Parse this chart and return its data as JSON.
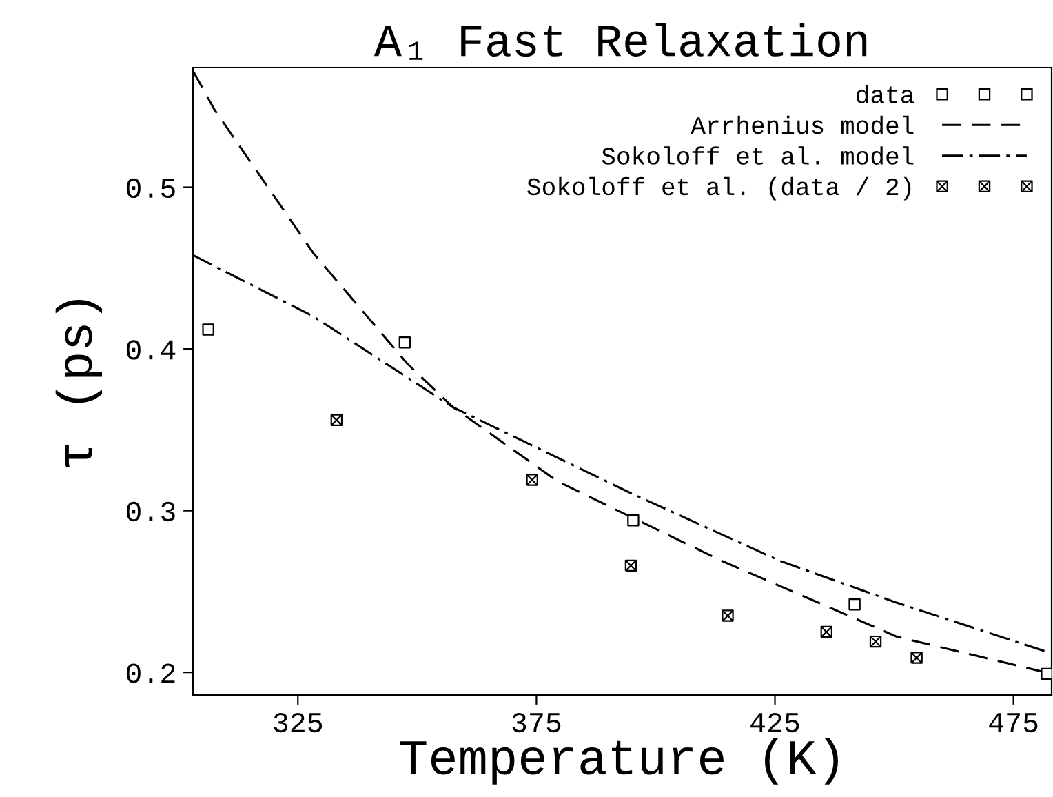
{
  "chart_data": {
    "type": "scatter",
    "title": "A₁ Fast Relaxation",
    "xlabel": "Temperature (K)",
    "ylabel": "τ (ps)",
    "xlim": [
      303,
      483
    ],
    "ylim": [
      0.186,
      0.574
    ],
    "xticks": [
      325,
      375,
      425,
      475
    ],
    "yticks": [
      0.2,
      0.3,
      0.4,
      0.5
    ],
    "grid": false,
    "legend": "top right",
    "series": [
      {
        "name": "data",
        "marker": "square",
        "color": "#000000",
        "x": [
          306.2,
          347.4,
          395.3,
          441.7,
          482
        ],
        "values": [
          0.412,
          0.404,
          0.294,
          0.242,
          0.199
        ]
      },
      {
        "name": "Arrhenius model",
        "type": "line",
        "line_style": "dashed",
        "color": "#000000",
        "x": [
          303,
          307.5,
          328.3,
          347.9,
          357.5,
          379.5,
          413.8,
          450.6,
          481.7
        ],
        "values": [
          0.572,
          0.548,
          0.459,
          0.391,
          0.364,
          0.318,
          0.269,
          0.222,
          0.2
        ]
      },
      {
        "name": "Sokoloff et al. model",
        "type": "line",
        "line_style": "dashdot",
        "color": "#000000",
        "x": [
          303,
          328.3,
          357.5,
          395.4,
          426,
          450.6,
          481.7
        ],
        "values": [
          0.458,
          0.42,
          0.364,
          0.31,
          0.269,
          0.243,
          0.213
        ]
      },
      {
        "name": "Sokoloff et al. (data / 2)",
        "marker": "cross",
        "color": "#000000",
        "x": [
          333.1,
          374.1,
          394.8,
          415.1,
          435.8,
          446.1,
          454.7
        ],
        "values": [
          0.356,
          0.319,
          0.266,
          0.235,
          0.225,
          0.219,
          0.209
        ]
      }
    ]
  }
}
